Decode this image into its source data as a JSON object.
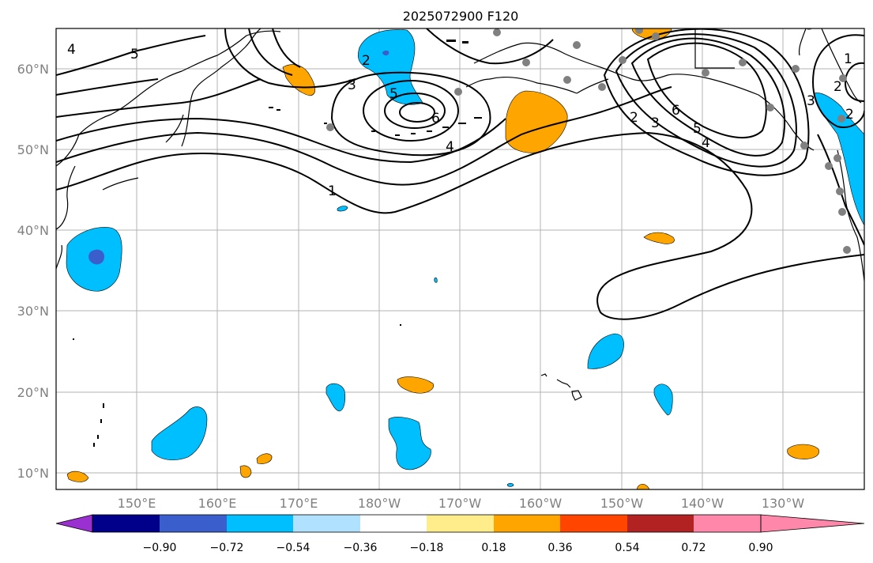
{
  "title": "2025072900 F120",
  "lat_labels": [
    "60°N",
    "50°N",
    "40°N",
    "30°N",
    "20°N",
    "10°N"
  ],
  "lon_labels": [
    "150°E",
    "160°E",
    "170°E",
    "180°W",
    "170°W",
    "160°W",
    "150°W",
    "140°W",
    "130°W"
  ],
  "contour_labels": [
    "1",
    "2",
    "3",
    "4",
    "5",
    "6",
    "4",
    "5",
    "3",
    "2",
    "6",
    "5",
    "4",
    "3",
    "2",
    "1",
    "2"
  ],
  "colorbar": {
    "labels": [
      "−0.90",
      "−0.72",
      "−0.54",
      "−0.36",
      "−0.18",
      "0.18",
      "0.36",
      "0.54",
      "0.72",
      "0.90"
    ],
    "colors": [
      "#9b30d0",
      "#00008b",
      "#3a5fcd",
      "#00bfff",
      "#b0e2ff",
      "#ffffff",
      "#ffec8b",
      "#ffa500",
      "#ff4500",
      "#b22222",
      "#ff88aa"
    ]
  },
  "styles": {
    "station_color": "#808080",
    "contour_color": "#000000",
    "grid_color": "#b3b3b3"
  }
}
